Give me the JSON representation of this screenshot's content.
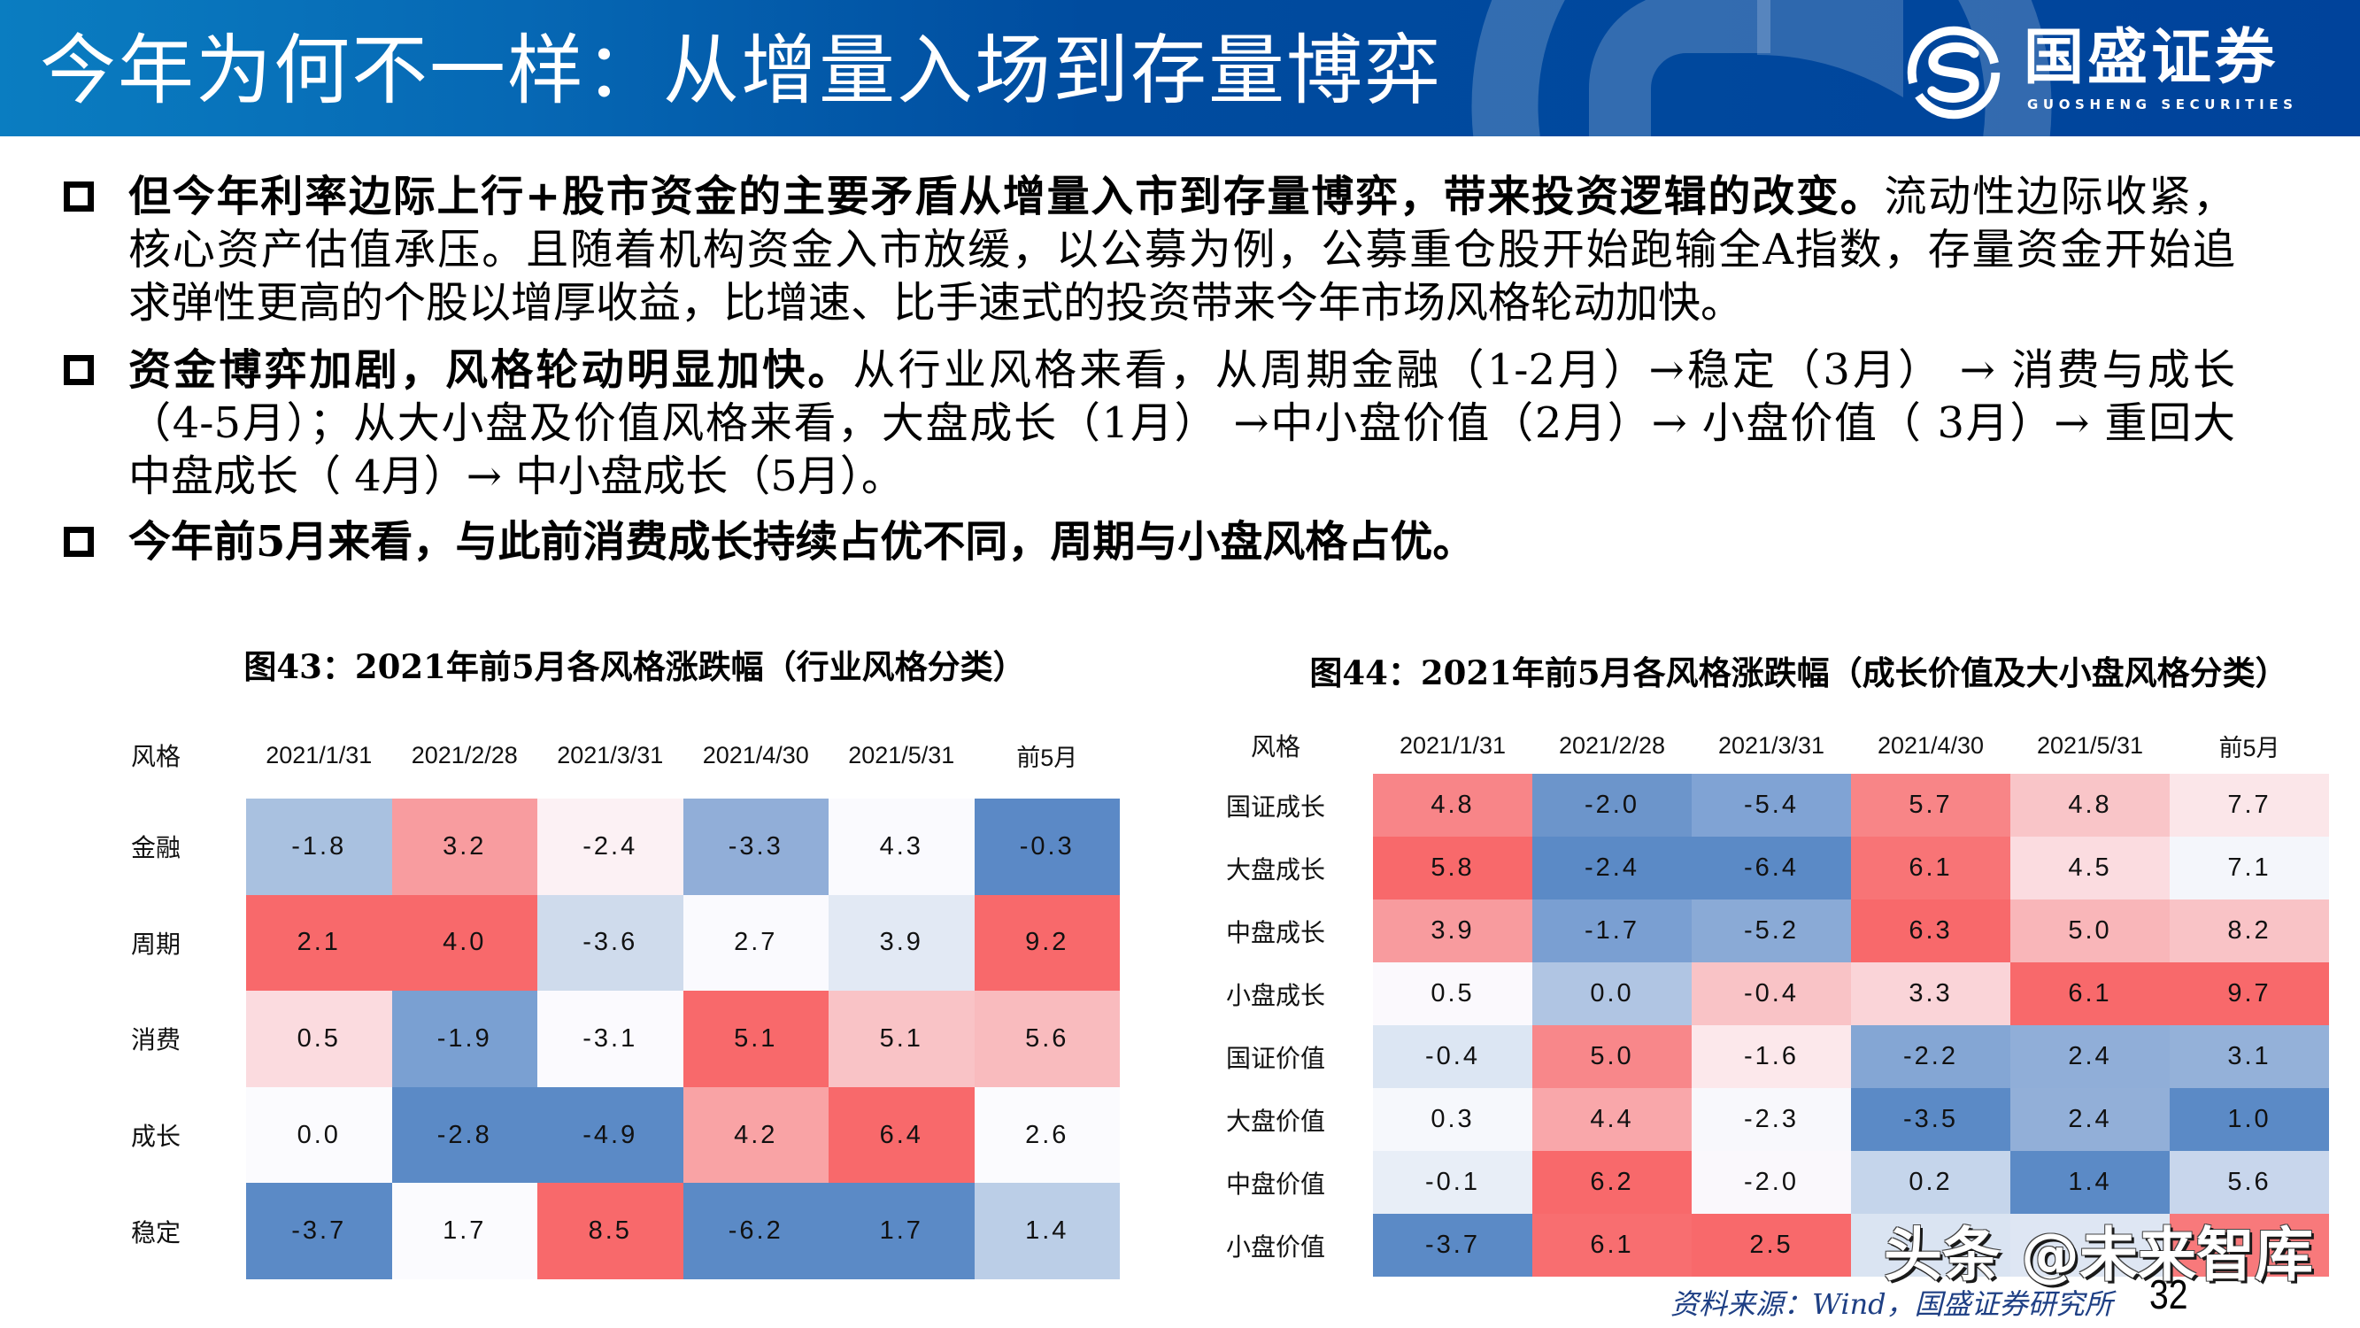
{
  "header": {
    "title": "今年为何不一样：从增量入场到存量博弈",
    "logo": {
      "icon": "guosheng-logo-icon",
      "name_cn": "国盛证券",
      "name_en": "GUOSHENG SECURITIES"
    }
  },
  "bullets": [
    {
      "icon": "hollow-square-bullet-icon",
      "lines": [
        {
          "segments": [
            {
              "text": "但今年利率边际上行+股市资金的主要矛盾从增量入市到存量博弈，带来投资逻辑的改变。",
              "bold": true
            },
            {
              "text": "流动性边际收紧，",
              "bold": false
            }
          ]
        },
        {
          "segments": [
            {
              "text": "核心资产估值承压。且随着机构资金入市放缓，以公募为例，公募重仓股开始跑输全A指数，存量资金开始追",
              "bold": false
            }
          ]
        },
        {
          "segments": [
            {
              "text": "求弹性更高的个股以增厚收益，比增速、比手速式的投资带来今年市场风格轮动加快。",
              "bold": false
            }
          ]
        }
      ]
    },
    {
      "icon": "hollow-square-bullet-icon",
      "lines": [
        {
          "segments": [
            {
              "text": "资金博弈加剧，风格轮动明显加快。",
              "bold": true
            },
            {
              "text": "从行业风格来看，从周期金融（1-2月）→稳定（3月） → 消费与成长",
              "bold": false
            }
          ]
        },
        {
          "segments": [
            {
              "text": "（4-5月）；从大小盘及价值风格来看，大盘成长（1月） →中小盘价值（2月）→ 小盘价值（ 3月）→ 重回大",
              "bold": false
            }
          ]
        },
        {
          "segments": [
            {
              "text": "中盘成长（ 4月）→ 中小盘成长（5月）。",
              "bold": false
            }
          ]
        }
      ]
    },
    {
      "icon": "hollow-square-bullet-icon",
      "lines": [
        {
          "segments": [
            {
              "text": "今年前5月来看，与此前消费成长持续占优不同，周期与小盘风格占优。",
              "bold": true
            }
          ]
        }
      ]
    }
  ],
  "chart_data": [
    {
      "type": "heatmap",
      "title": "图43：2021年前5月各风格涨跌幅（行业风格分类）",
      "corner_label": "风格",
      "columns": [
        "2021/1/31",
        "2021/2/28",
        "2021/3/31",
        "2021/4/30",
        "2021/5/31",
        "前5月"
      ],
      "rows": [
        {
          "label": "金融",
          "values": [
            -1.8,
            3.2,
            -2.4,
            -3.3,
            4.3,
            -0.3
          ],
          "colors": [
            "#A9C1E0",
            "#F89C9F",
            "#FCF1F4",
            "#91AED8",
            "#FAFAFE",
            "#5B89C6"
          ]
        },
        {
          "label": "周期",
          "values": [
            2.1,
            4.0,
            -3.6,
            2.7,
            3.9,
            9.2
          ],
          "colors": [
            "#F8696B",
            "#F8696B",
            "#CFDBEC",
            "#FAFAFE",
            "#E2E9F4",
            "#F8696B"
          ]
        },
        {
          "label": "消费",
          "values": [
            0.5,
            -1.9,
            -3.1,
            5.1,
            5.1,
            5.6
          ],
          "colors": [
            "#FBDBDF",
            "#7AA0D2",
            "#FBFAFE",
            "#F8696B",
            "#F9C3C6",
            "#F9BBBE"
          ]
        },
        {
          "label": "成长",
          "values": [
            0.0,
            -2.8,
            -4.9,
            4.2,
            6.4,
            2.6
          ],
          "colors": [
            "#FBFBFE",
            "#5B8AC6",
            "#5B8AC6",
            "#F9A3A5",
            "#F8696B",
            "#FBFBFE"
          ]
        },
        {
          "label": "稳定",
          "values": [
            -3.7,
            1.7,
            8.5,
            -6.2,
            1.7,
            1.4
          ],
          "colors": [
            "#5B8AC6",
            "#FBFBFE",
            "#F8696B",
            "#5B8AC6",
            "#5B8AC6",
            "#BBCEE7"
          ]
        }
      ],
      "color_scale": {
        "low": "#5B8AC6",
        "mid": "#FCFCFF",
        "high": "#F8696B",
        "per_column": true
      }
    },
    {
      "type": "heatmap",
      "title": "图44：2021年前5月各风格涨跌幅（成长价值及大小盘风格分类）",
      "corner_label": "风格",
      "columns": [
        "2021/1/31",
        "2021/2/28",
        "2021/3/31",
        "2021/4/30",
        "2021/5/31",
        "前5月"
      ],
      "rows": [
        {
          "label": "国证成长",
          "values": [
            4.8,
            -2.0,
            -5.4,
            5.7,
            4.8,
            7.7
          ],
          "colors": [
            "#F88588",
            "#6C95CB",
            "#80A3D4",
            "#F88587",
            "#F9C5C8",
            "#FBE6E9"
          ]
        },
        {
          "label": "大盘成长",
          "values": [
            5.8,
            -2.4,
            -6.4,
            6.1,
            4.5,
            7.1
          ],
          "colors": [
            "#F8696B",
            "#5B8AC6",
            "#5B8AC6",
            "#F87476",
            "#FBDCE0",
            "#F4F6FB"
          ]
        },
        {
          "label": "中盘成长",
          "values": [
            3.9,
            -1.7,
            -5.2,
            6.3,
            5.0,
            8.2
          ],
          "colors": [
            "#F89B9E",
            "#7A9FD2",
            "#8AAAD6",
            "#F8696B",
            "#F9B6B9",
            "#F9C3C6"
          ]
        },
        {
          "label": "小盘成长",
          "values": [
            0.5,
            0.0,
            -0.4,
            3.3,
            6.1,
            9.7
          ],
          "colors": [
            "#FBF9FD",
            "#B0C5E3",
            "#F9C3C6",
            "#FAD4D8",
            "#F8696B",
            "#F8696B"
          ]
        },
        {
          "label": "国证价值",
          "values": [
            -0.4,
            5.0,
            -1.6,
            -2.2,
            2.4,
            3.1
          ],
          "colors": [
            "#DCE6F3",
            "#F8878A",
            "#FCE8EB",
            "#84A6D4",
            "#90AED8",
            "#94B1D9"
          ]
        },
        {
          "label": "大盘价值",
          "values": [
            0.3,
            4.4,
            -2.3,
            -3.5,
            2.4,
            1.0
          ],
          "colors": [
            "#F6F8FC",
            "#F9A7AA",
            "#F8F8FC",
            "#5B8AC6",
            "#92AFD8",
            "#5B8AC6"
          ]
        },
        {
          "label": "中盘价值",
          "values": [
            -0.1,
            6.2,
            -2.0,
            0.2,
            1.4,
            5.6
          ],
          "colors": [
            "#E8EEF7",
            "#F8696B",
            "#FAF8FC",
            "#C5D5EB",
            "#5B8AC6",
            "#C8D6EC"
          ]
        },
        {
          "label": "小盘价值",
          "values": [
            -3.7,
            6.1,
            2.5,
            null,
            null,
            null
          ],
          "colors": [
            "#5B8AC6",
            "#F86E70",
            "#F8696B",
            "#DAE4F2",
            "#DEE6F3",
            "#F8797B"
          ]
        }
      ],
      "color_scale": {
        "low": "#5B8AC6",
        "mid": "#FCFCFF",
        "high": "#F8696B",
        "per_column": true
      }
    }
  ],
  "footer": {
    "source": "资料来源：Wind，国盛证券研究所",
    "page_number": "32",
    "watermark": "头条 @未来智库"
  },
  "colors": {
    "header_gradient_start": "#0A7DC1",
    "header_gradient_end": "#00439B",
    "heat_high": "#F8696B",
    "heat_low": "#5B8AC6",
    "source_text": "#1E3F84"
  }
}
